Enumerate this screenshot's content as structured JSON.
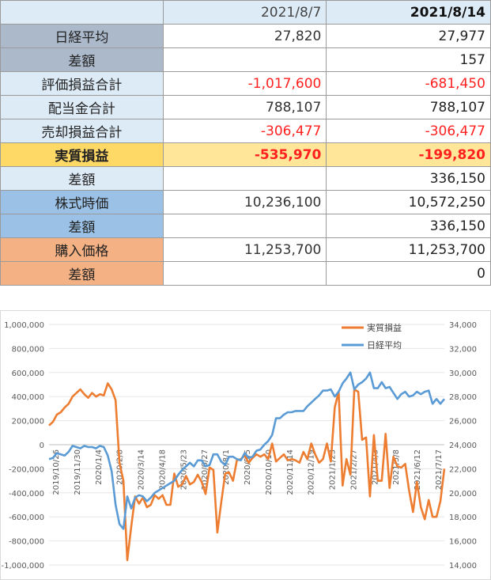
{
  "table": {
    "header": [
      "",
      "2021/8/7",
      "2021/8/14"
    ],
    "rows": [
      {
        "label": "日経平均",
        "v1": "27,820",
        "v2": "27,977",
        "bg": "#acb9ca"
      },
      {
        "label": "差額",
        "v1": "",
        "v2": "157",
        "bg": "#acb9ca"
      },
      {
        "label": "評価損益合計",
        "v1": "-1,017,600",
        "v2": "-681,450",
        "bg": "#ddebf7",
        "red": true
      },
      {
        "label": "配当金合計",
        "v1": "788,107",
        "v2": "788,107",
        "bg": "#ddebf7"
      },
      {
        "label": "売却損益合計",
        "v1": "-306,477",
        "v2": "-306,477",
        "bg": "#ddebf7",
        "red": true
      },
      {
        "label": "実質損益",
        "v1": "-535,970",
        "v2": "-199,820",
        "bg": "#ffd966",
        "red": true,
        "bold": true,
        "rowbg": "#ffe699"
      },
      {
        "label": "差額",
        "v1": "",
        "v2": "336,150",
        "bg": "#ddebf7"
      },
      {
        "label": "株式時価",
        "v1": "10,236,100",
        "v2": "10,572,250",
        "bg": "#9bc2e6"
      },
      {
        "label": "差額",
        "v1": "",
        "v2": "336,150",
        "bg": "#9bc2e6"
      },
      {
        "label": "購入価格",
        "v1": "11,253,700",
        "v2": "11,253,700",
        "bg": "#f4b183"
      },
      {
        "label": "差額",
        "v1": "",
        "v2": "0",
        "bg": "#f4b183"
      }
    ]
  },
  "chart_data": {
    "type": "line",
    "title": "",
    "x_tick_labels": [
      "2019/10/26",
      "2019/11/30",
      "2020/1/4",
      "2020/2/8",
      "2020/3/14",
      "2020/4/18",
      "2020/5/23",
      "2020/6/27",
      "2020/8/1",
      "2020/9/5",
      "2020/10/10",
      "2020/11/14",
      "2020/12/19",
      "2021/1/23",
      "2021/2/27",
      "2021/4/3",
      "2021/5/8",
      "2021/6/12",
      "2021/7/17"
    ],
    "left_axis": {
      "min": -1000000,
      "max": 1000000,
      "step": 200000,
      "tick_labels": [
        "-1,000,000",
        "-800,000",
        "-600,000",
        "-400,000",
        "-200,000",
        "0",
        "200,000",
        "400,000",
        "600,000",
        "800,000",
        "1,000,000"
      ]
    },
    "right_axis": {
      "min": 14000,
      "max": 34000,
      "step": 2000,
      "tick_labels": [
        "14,000",
        "16,000",
        "18,000",
        "20,000",
        "22,000",
        "24,000",
        "26,000",
        "28,000",
        "30,000",
        "32,000",
        "34,000"
      ]
    },
    "legend_position": "top-right",
    "series": [
      {
        "name": "実質損益",
        "axis": "left",
        "color": "#ed7d31",
        "values": [
          160000,
          190000,
          250000,
          270000,
          310000,
          340000,
          400000,
          430000,
          460000,
          420000,
          390000,
          430000,
          400000,
          420000,
          410000,
          510000,
          460000,
          370000,
          -150000,
          -300000,
          -960000,
          -680000,
          -430000,
          -490000,
          -440000,
          -520000,
          -500000,
          -420000,
          -450000,
          -420000,
          -500000,
          -500000,
          -240000,
          -350000,
          -330000,
          -260000,
          -330000,
          -310000,
          -250000,
          -310000,
          -410000,
          -190000,
          -210000,
          -730000,
          -480000,
          -240000,
          -230000,
          -300000,
          -130000,
          -120000,
          -90000,
          -150000,
          -110000,
          -80000,
          -100000,
          -80000,
          -120000,
          10000,
          -140000,
          -110000,
          -80000,
          -130000,
          -120000,
          -130000,
          -150000,
          -60000,
          -120000,
          10000,
          -80000,
          -150000,
          -120000,
          10000,
          -140000,
          310000,
          440000,
          -340000,
          -120000,
          -250000,
          460000,
          440000,
          40000,
          60000,
          -430000,
          80000,
          -300000,
          -300000,
          90000,
          -360000,
          -100000,
          -180000,
          -190000,
          -160000,
          -380000,
          -560000,
          -310000,
          -520000,
          -620000,
          -460000,
          -600000,
          -600000,
          -470000,
          -200000
        ]
      },
      {
        "name": "日経平均",
        "axis": "right",
        "color": "#5b9bd5",
        "values": [
          22800,
          22900,
          23300,
          23200,
          23100,
          23400,
          23900,
          23800,
          23700,
          23900,
          23800,
          23800,
          23700,
          23900,
          23800,
          23100,
          21800,
          19000,
          17400,
          17000,
          19700,
          18700,
          19600,
          19800,
          19700,
          19300,
          19600,
          20000,
          20200,
          20400,
          20600,
          20800,
          21000,
          21500,
          21900,
          22200,
          22500,
          22200,
          22700,
          22700,
          22200,
          22300,
          23200,
          23200,
          22600,
          22300,
          23000,
          23000,
          22800,
          22700,
          23300,
          22900,
          23000,
          23500,
          23600,
          24000,
          24300,
          24800,
          26200,
          26200,
          26500,
          26700,
          26700,
          26800,
          26800,
          26800,
          27200,
          27500,
          27800,
          28100,
          28500,
          28500,
          28600,
          28000,
          28400,
          29100,
          29500,
          30000,
          28600,
          29000,
          29200,
          29500,
          30000,
          28700,
          28700,
          29200,
          28700,
          28800,
          28300,
          27800,
          28200,
          28400,
          28000,
          28100,
          28400,
          28200,
          28400,
          28500,
          27400,
          27800,
          27400,
          27800
        ]
      }
    ]
  }
}
